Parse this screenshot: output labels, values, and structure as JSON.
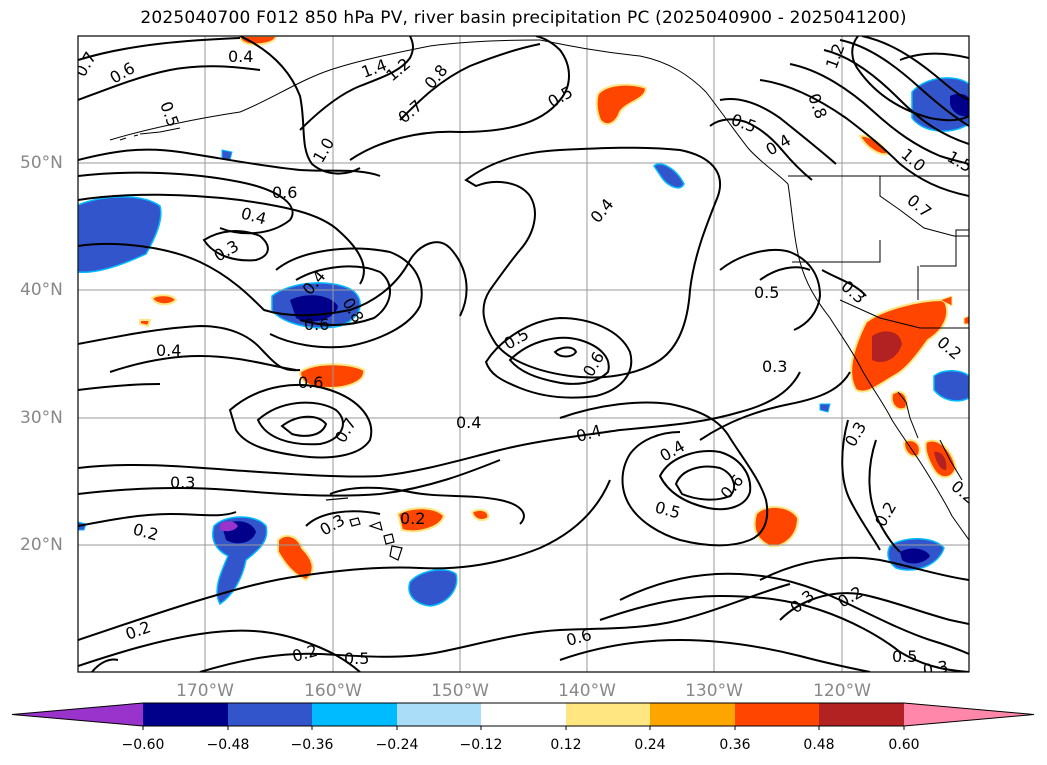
{
  "title": "2025040700 F012 850 hPa PV, river basin precipitation PC (2025040900 - 2025041200)",
  "map": {
    "lon_labels": [
      "170°W",
      "160°W",
      "150°W",
      "140°W",
      "130°W",
      "120°W"
    ],
    "lat_labels": [
      "50°N",
      "40°N",
      "30°N",
      "20°N"
    ],
    "contour_labels": [
      {
        "id": "c1",
        "text": "0.7"
      },
      {
        "id": "c2",
        "text": "0.6"
      },
      {
        "id": "c3",
        "text": "0.5"
      },
      {
        "id": "c4",
        "text": "0.4"
      },
      {
        "id": "c5",
        "text": "1.4"
      },
      {
        "id": "c6",
        "text": "1.2"
      },
      {
        "id": "c7",
        "text": "0.8"
      },
      {
        "id": "c8",
        "text": "0.7"
      },
      {
        "id": "c9",
        "text": "1.0"
      },
      {
        "id": "c10",
        "text": "0.6"
      },
      {
        "id": "c11",
        "text": "0.4"
      },
      {
        "id": "c12",
        "text": "0.3"
      },
      {
        "id": "c13",
        "text": "0.5"
      },
      {
        "id": "c14",
        "text": "0.4"
      },
      {
        "id": "c15",
        "text": "0.5"
      },
      {
        "id": "c16",
        "text": "0.4"
      },
      {
        "id": "c17",
        "text": "1.2"
      },
      {
        "id": "c18",
        "text": "0.8"
      },
      {
        "id": "c19",
        "text": "1.0"
      },
      {
        "id": "c20",
        "text": "0.7"
      },
      {
        "id": "c21",
        "text": "1.5"
      },
      {
        "id": "c22",
        "text": "0.4"
      },
      {
        "id": "c23",
        "text": "0.8"
      },
      {
        "id": "c24",
        "text": "0.6"
      },
      {
        "id": "c25",
        "text": "0.4"
      },
      {
        "id": "c26",
        "text": "0.6"
      },
      {
        "id": "c27",
        "text": "0.5"
      },
      {
        "id": "c28",
        "text": "0.6"
      },
      {
        "id": "c29",
        "text": "0.3"
      },
      {
        "id": "c30",
        "text": "0.5"
      },
      {
        "id": "c31",
        "text": "0.7"
      },
      {
        "id": "c32",
        "text": "0.4"
      },
      {
        "id": "c33",
        "text": "0.4"
      },
      {
        "id": "c34",
        "text": "0.3"
      },
      {
        "id": "c35",
        "text": "0.2"
      },
      {
        "id": "c36",
        "text": "0.3"
      },
      {
        "id": "c37",
        "text": "0.2"
      },
      {
        "id": "c38",
        "text": "0.4"
      },
      {
        "id": "c39",
        "text": "0.6"
      },
      {
        "id": "c40",
        "text": "0.5"
      },
      {
        "id": "c41",
        "text": "0.3"
      },
      {
        "id": "c42",
        "text": "0.2"
      },
      {
        "id": "c43",
        "text": "0.2"
      },
      {
        "id": "c44",
        "text": "0.2"
      },
      {
        "id": "c45",
        "text": "0.2"
      },
      {
        "id": "c46",
        "text": "0.5"
      },
      {
        "id": "c47",
        "text": "0.6"
      },
      {
        "id": "c48",
        "text": "0.3"
      },
      {
        "id": "c49",
        "text": "0.2"
      },
      {
        "id": "c50",
        "text": "0.5"
      },
      {
        "id": "c51",
        "text": "0.3"
      },
      {
        "id": "c52",
        "text": "0.3"
      },
      {
        "id": "c53",
        "text": "0.2"
      }
    ]
  },
  "colorbar": {
    "ticks": [
      "−0.60",
      "−0.48",
      "−0.36",
      "−0.24",
      "−0.12",
      "0.12",
      "0.24",
      "0.36",
      "0.48",
      "0.60"
    ],
    "colors": [
      "#9933CC",
      "#00008B",
      "#3355CC",
      "#00BBFF",
      "#AADDF7",
      "#FFFFFF",
      "#FFE680",
      "#FFA500",
      "#FF4500",
      "#B22222",
      "#FF88AA",
      "#FF88AA"
    ]
  }
}
